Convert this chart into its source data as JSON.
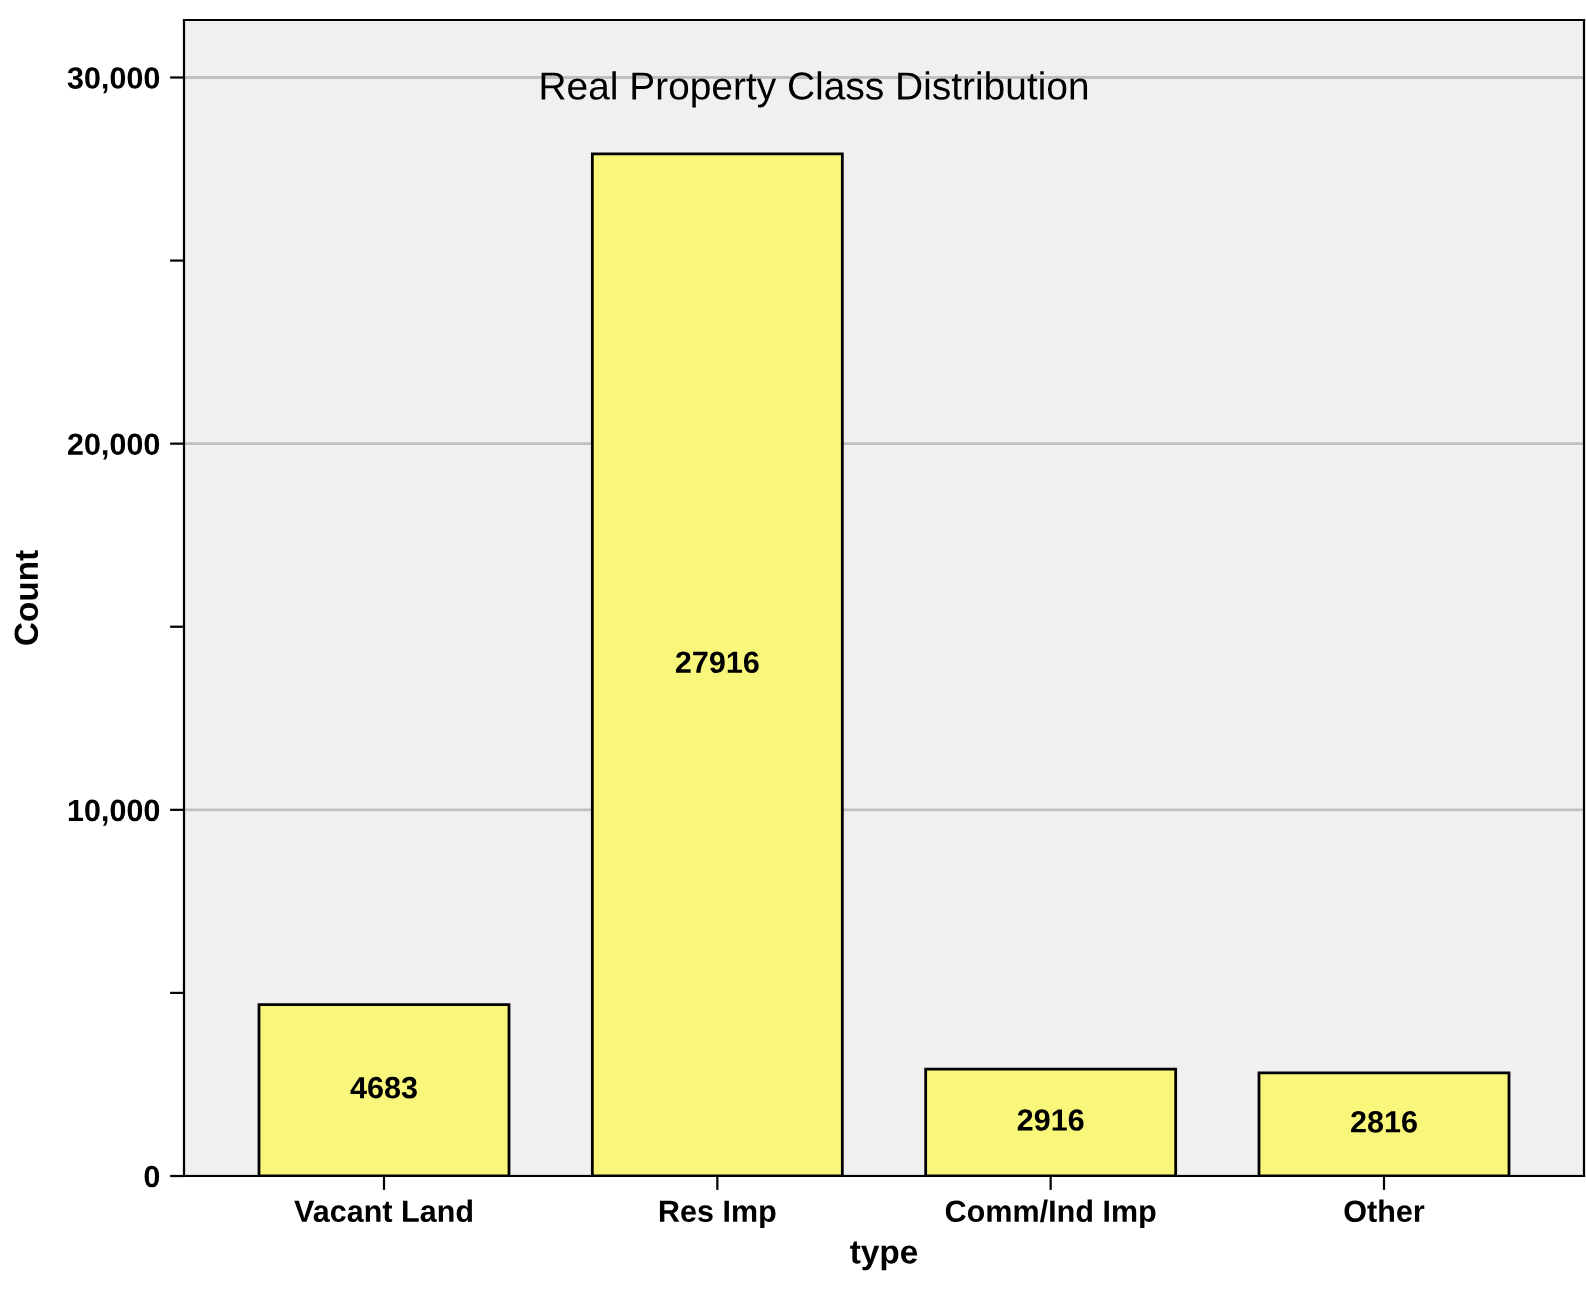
{
  "chart_data": {
    "type": "bar",
    "title": "Real Property Class Distribution",
    "xlabel": "type",
    "ylabel": "Count",
    "categories": [
      "Vacant Land",
      "Res Imp",
      "Comm/Ind Imp",
      "Other"
    ],
    "values": [
      4683,
      27916,
      2916,
      2816
    ],
    "color": "#f8f77c",
    "data_labels": true,
    "ylim": [
      0,
      31570
    ],
    "yticks": [
      0,
      {
        "value": 5000,
        "label": null
      },
      {
        "value": 10000,
        "label": "10,000"
      },
      {
        "value": 15000,
        "label": null
      },
      {
        "value": 20000,
        "label": "20,000"
      },
      {
        "value": 25000,
        "label": null
      },
      {
        "value": 30000,
        "label": "30,000"
      }
    ],
    "grid": "y",
    "legend": false
  }
}
